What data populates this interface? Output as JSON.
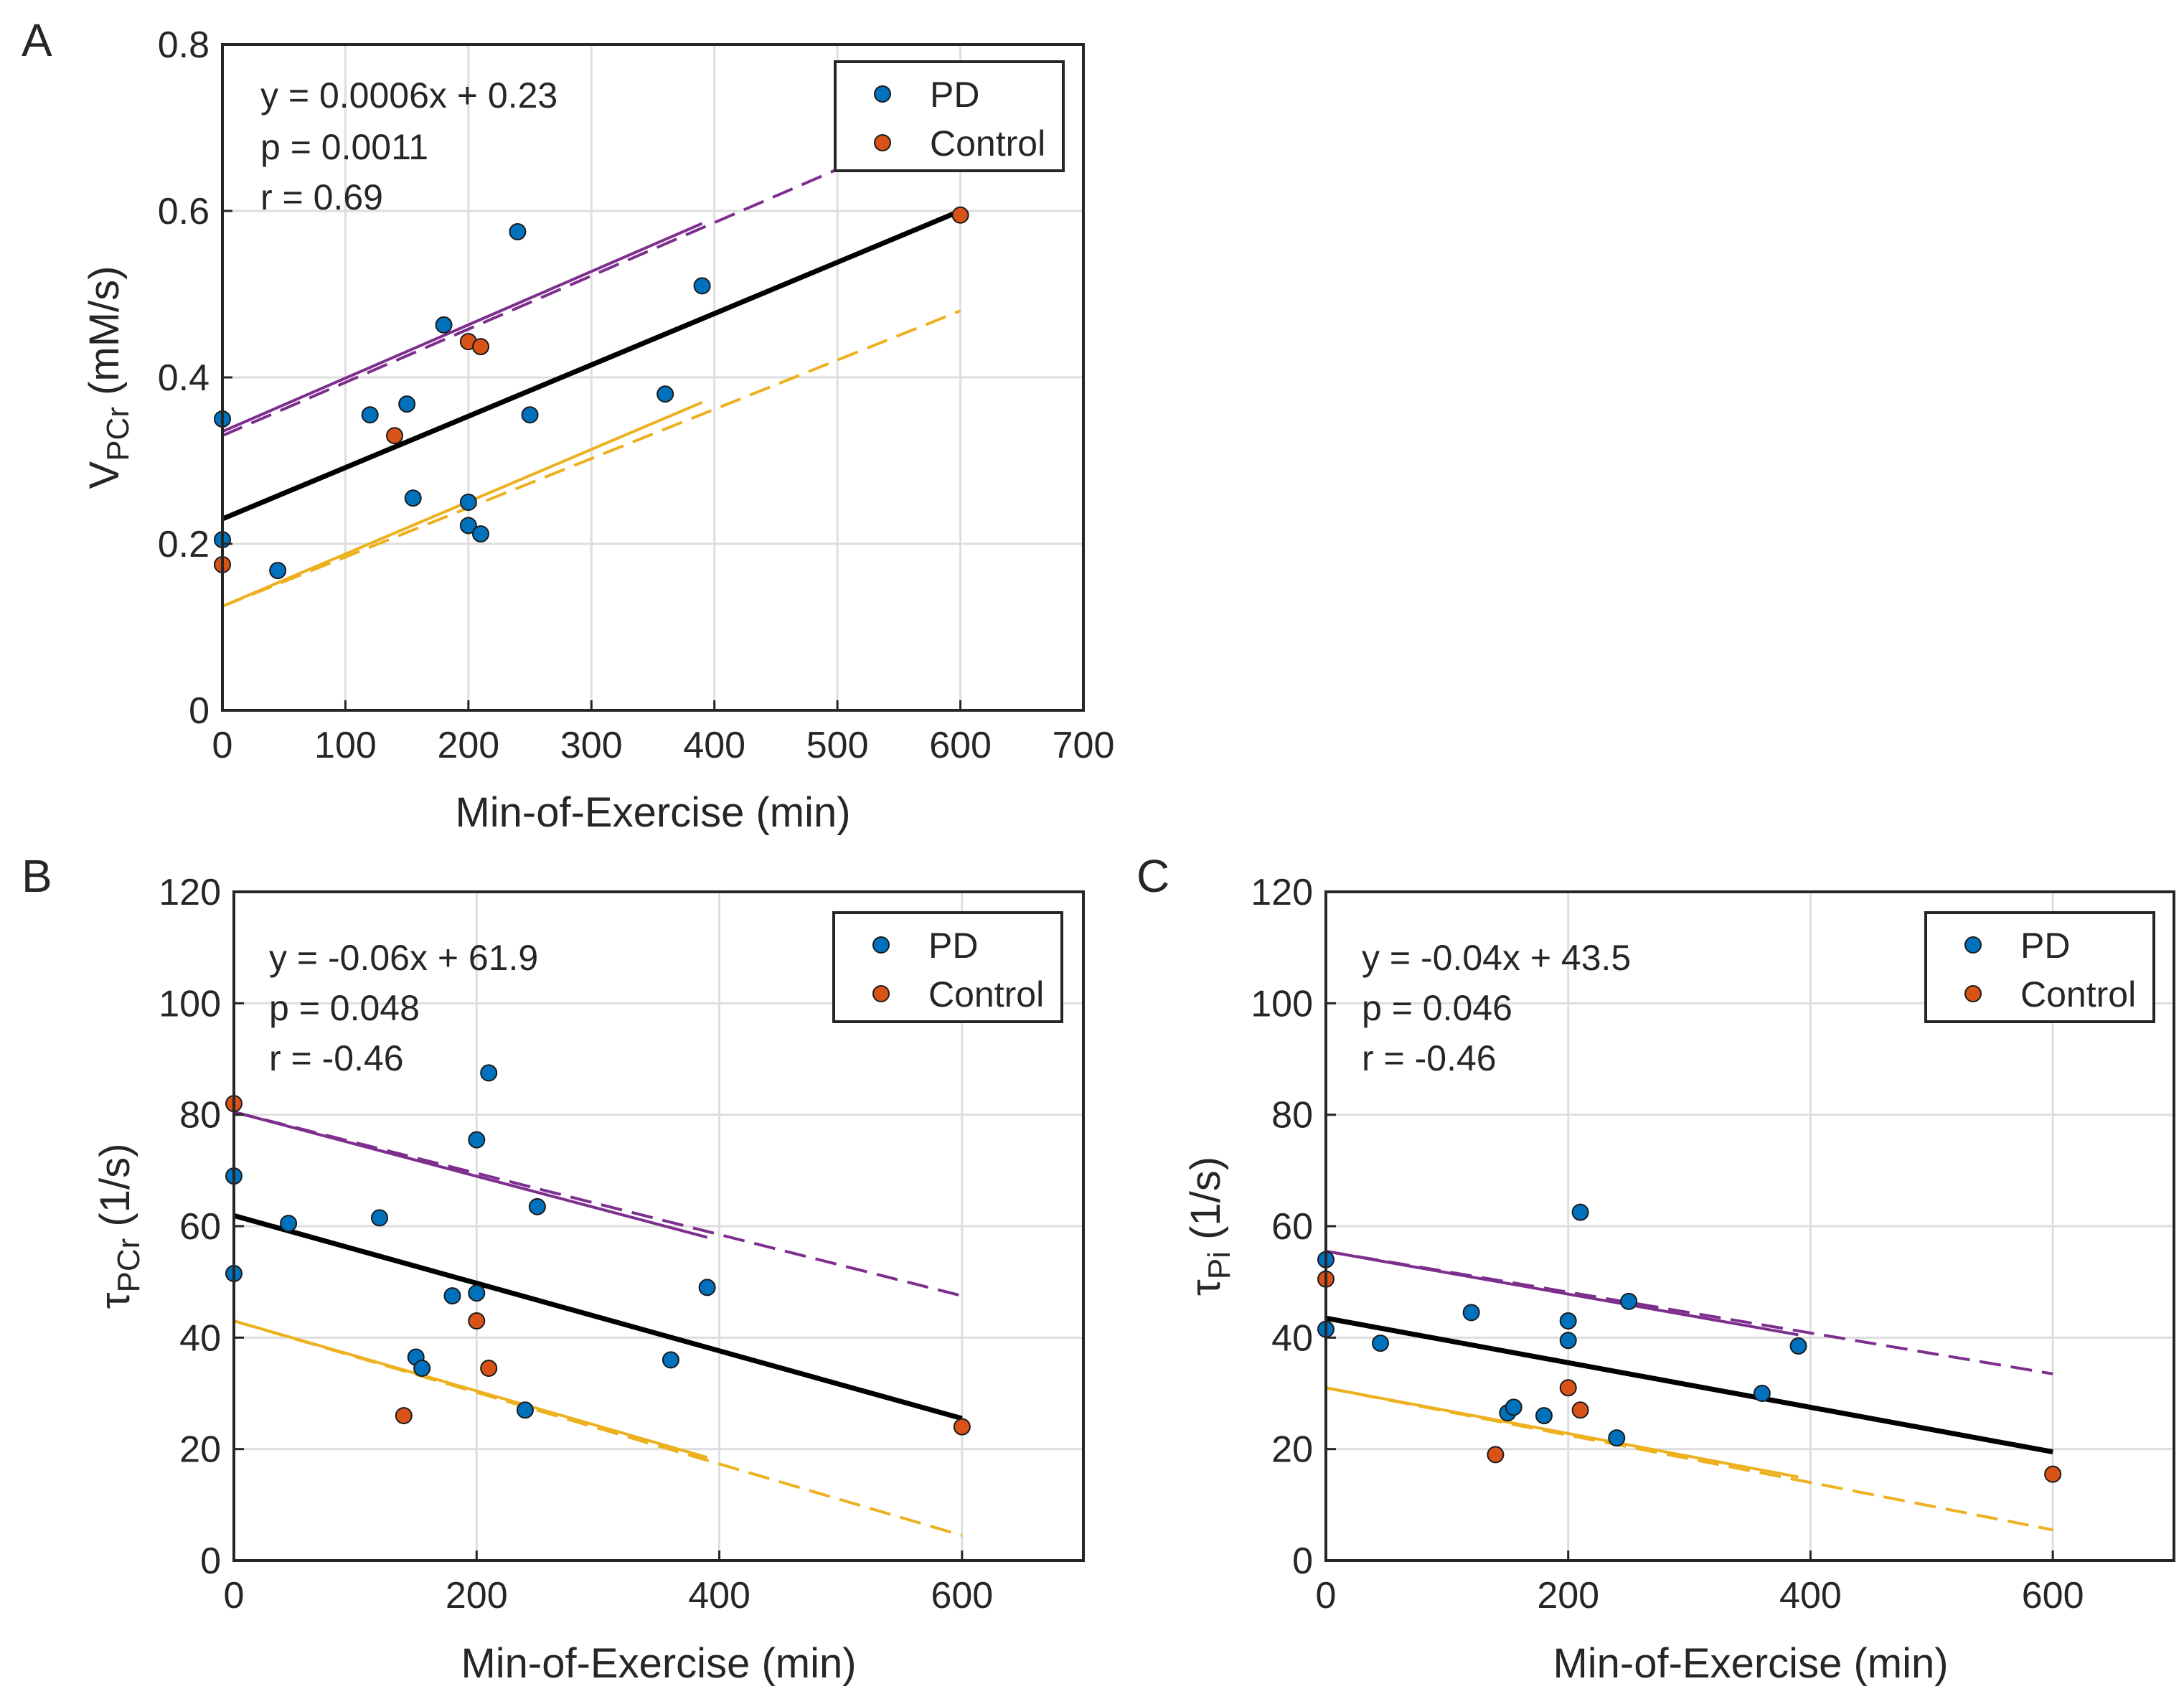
{
  "figure": {
    "legend_position": "top-right"
  },
  "chart_data": [
    {
      "type": "scatter",
      "panel_label": "A",
      "xlabel": "Min-of-Exercise (min)",
      "ylabel": {
        "main": "V",
        "sub": "PCr",
        "unit": " (mM/s)"
      },
      "xlim": [
        0,
        700
      ],
      "ylim": [
        0,
        0.8
      ],
      "xticks": [
        0,
        100,
        200,
        300,
        400,
        500,
        600,
        700
      ],
      "yticks": [
        0,
        0.2,
        0.4,
        0.6,
        0.8
      ],
      "ytick_labels": [
        "0",
        "0.2",
        "0.4",
        "0.6",
        "0.8"
      ],
      "grid": true,
      "legend": [
        "PD",
        "Control"
      ],
      "annotation": [
        "y = 0.0006x + 0.23",
        "p = 0.0011",
        "r = 0.69"
      ],
      "colors": {
        "PD": "#0072BD",
        "Control": "#D95319",
        "fit": "#000000",
        "upper_band": "#7E2F8E",
        "lower_band": "#EDB120"
      },
      "series": [
        {
          "name": "PD",
          "points": [
            [
              0,
              0.35
            ],
            [
              0,
              0.205
            ],
            [
              45,
              0.168
            ],
            [
              120,
              0.355
            ],
            [
              150,
              0.368
            ],
            [
              155,
              0.255
            ],
            [
              180,
              0.463
            ],
            [
              200,
              0.25
            ],
            [
              200,
              0.222
            ],
            [
              210,
              0.212
            ],
            [
              240,
              0.575
            ],
            [
              250,
              0.355
            ],
            [
              360,
              0.38
            ],
            [
              390,
              0.51
            ]
          ]
        },
        {
          "name": "Control",
          "points": [
            [
              0,
              0.175
            ],
            [
              140,
              0.33
            ],
            [
              200,
              0.443
            ],
            [
              210,
              0.437
            ],
            [
              600,
              0.595
            ]
          ]
        }
      ],
      "fit": {
        "x": [
          0,
          600
        ],
        "y": [
          0.23,
          0.6
        ]
      },
      "upper_band": {
        "solid": {
          "x": [
            0,
            390
          ],
          "y": [
            0.335,
            0.585
          ]
        },
        "dashed": {
          "x": [
            0,
            500
          ],
          "y": [
            0.33,
            0.65
          ]
        }
      },
      "lower_band": {
        "solid": {
          "x": [
            0,
            390
          ],
          "y": [
            0.125,
            0.37
          ]
        },
        "dashed": {
          "x": [
            0,
            600
          ],
          "y": [
            0.125,
            0.48
          ]
        }
      }
    },
    {
      "type": "scatter",
      "panel_label": "B",
      "xlabel": "Min-of-Exercise (min)",
      "ylabel": {
        "main": "τ",
        "sub": "PCr",
        "unit": " (1/s)"
      },
      "xlim": [
        0,
        700
      ],
      "ylim": [
        0,
        120
      ],
      "xticks": [
        0,
        200,
        400,
        600
      ],
      "yticks": [
        0,
        20,
        40,
        60,
        80,
        100,
        120
      ],
      "ytick_labels": [
        "0",
        "20",
        "40",
        "60",
        "80",
        "100",
        "120"
      ],
      "grid": true,
      "legend": [
        "PD",
        "Control"
      ],
      "annotation": [
        "y = -0.06x + 61.9",
        "p = 0.048",
        "r = -0.46"
      ],
      "colors": {
        "PD": "#0072BD",
        "Control": "#D95319",
        "fit": "#000000",
        "upper_band": "#7E2F8E",
        "lower_band": "#EDB120"
      },
      "series": [
        {
          "name": "PD",
          "points": [
            [
              0,
              69
            ],
            [
              0,
              51.5
            ],
            [
              45,
              60.5
            ],
            [
              120,
              61.5
            ],
            [
              150,
              36.5
            ],
            [
              155,
              34.5
            ],
            [
              180,
              47.5
            ],
            [
              200,
              75.5
            ],
            [
              200,
              48
            ],
            [
              210,
              87.5
            ],
            [
              240,
              27
            ],
            [
              250,
              63.5
            ],
            [
              360,
              36
            ],
            [
              390,
              49
            ]
          ]
        },
        {
          "name": "Control",
          "points": [
            [
              0,
              82
            ],
            [
              140,
              26
            ],
            [
              200,
              43
            ],
            [
              210,
              34.5
            ],
            [
              600,
              24
            ]
          ]
        }
      ],
      "fit": {
        "x": [
          0,
          600
        ],
        "y": [
          61.9,
          25.5
        ]
      },
      "upper_band": {
        "solid": {
          "x": [
            0,
            390
          ],
          "y": [
            80.5,
            58
          ]
        },
        "dashed": {
          "x": [
            0,
            600
          ],
          "y": [
            80.5,
            47.5
          ]
        }
      },
      "lower_band": {
        "solid": {
          "x": [
            0,
            390
          ],
          "y": [
            43,
            18.5
          ]
        },
        "dashed": {
          "x": [
            0,
            600
          ],
          "y": [
            43,
            4.5
          ]
        }
      }
    },
    {
      "type": "scatter",
      "panel_label": "C",
      "xlabel": "Min-of-Exercise (min)",
      "ylabel": {
        "main": "τ",
        "sub": "Pi",
        "unit": " (1/s)"
      },
      "xlim": [
        0,
        700
      ],
      "ylim": [
        0,
        120
      ],
      "xticks": [
        0,
        200,
        400,
        600
      ],
      "yticks": [
        0,
        20,
        40,
        60,
        80,
        100,
        120
      ],
      "ytick_labels": [
        "0",
        "20",
        "40",
        "60",
        "80",
        "100",
        "120"
      ],
      "grid": true,
      "legend": [
        "PD",
        "Control"
      ],
      "annotation": [
        "y = -0.04x + 43.5",
        "p = 0.046",
        "r = -0.46"
      ],
      "colors": {
        "PD": "#0072BD",
        "Control": "#D95319",
        "fit": "#000000",
        "upper_band": "#7E2F8E",
        "lower_band": "#EDB120"
      },
      "series": [
        {
          "name": "PD",
          "points": [
            [
              0,
              54
            ],
            [
              0,
              41.5
            ],
            [
              45,
              39
            ],
            [
              120,
              44.5
            ],
            [
              150,
              26.5
            ],
            [
              155,
              27.5
            ],
            [
              180,
              26
            ],
            [
              200,
              43
            ],
            [
              200,
              39.5
            ],
            [
              210,
              62.5
            ],
            [
              240,
              22
            ],
            [
              250,
              46.5
            ],
            [
              360,
              30
            ],
            [
              390,
              38.5
            ]
          ]
        },
        {
          "name": "Control",
          "points": [
            [
              0,
              50.5
            ],
            [
              140,
              19
            ],
            [
              200,
              31
            ],
            [
              210,
              27
            ],
            [
              600,
              15.5
            ]
          ]
        }
      ],
      "fit": {
        "x": [
          0,
          600
        ],
        "y": [
          43.5,
          19.5
        ]
      },
      "upper_band": {
        "solid": {
          "x": [
            0,
            390
          ],
          "y": [
            55.5,
            40.5
          ]
        },
        "dashed": {
          "x": [
            0,
            600
          ],
          "y": [
            55.5,
            33.5
          ]
        }
      },
      "lower_band": {
        "solid": {
          "x": [
            0,
            390
          ],
          "y": [
            31,
            15
          ]
        },
        "dashed": {
          "x": [
            0,
            600
          ],
          "y": [
            31,
            5.5
          ]
        }
      }
    }
  ]
}
